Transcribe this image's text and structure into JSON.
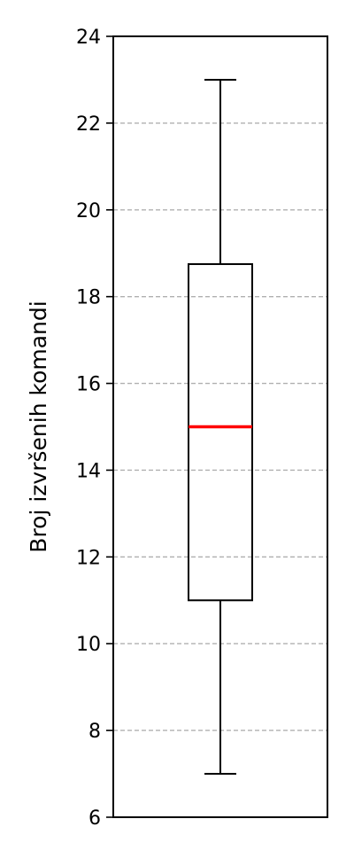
{
  "chart_data": {
    "type": "boxplot",
    "title": "",
    "xlabel": "",
    "ylabel": "Broj izvršenih komandi",
    "ylim": [
      6,
      24
    ],
    "yticks": [
      6,
      8,
      10,
      12,
      14,
      16,
      18,
      20,
      22,
      24
    ],
    "grid": "horizontal-dashed",
    "boxes": [
      {
        "whisker_low": 7,
        "q1": 11,
        "median": 15,
        "q3": 18.75,
        "whisker_high": 23
      }
    ],
    "colors": {
      "median": "#ff0000",
      "grid": "#b0b0b0",
      "box": "#000000"
    }
  }
}
